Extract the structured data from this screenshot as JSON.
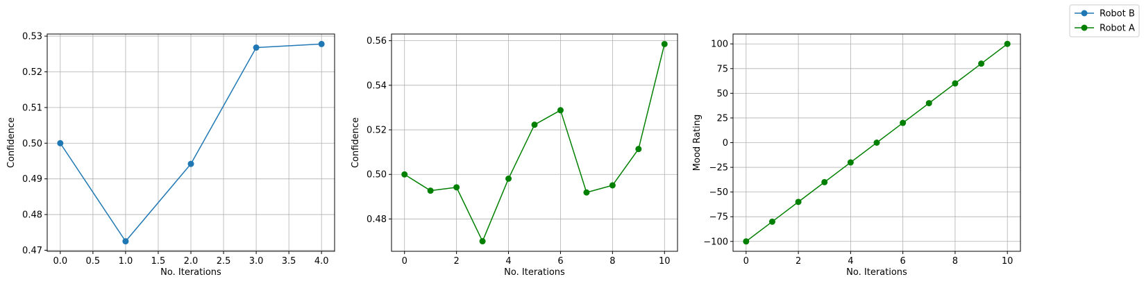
{
  "legend": {
    "placement": "top-right",
    "entries": [
      {
        "label": "Robot B",
        "color": "#1f77b4",
        "marker": "circle"
      },
      {
        "label": "Robot A",
        "color": "#008000",
        "marker": "circle"
      }
    ]
  },
  "chart_data": [
    {
      "type": "line",
      "color": "#1f77b4",
      "xlabel": "No. Iterations",
      "ylabel": "Confidence",
      "xlim": [
        -0.2,
        4.2
      ],
      "ylim": [
        0.4697,
        0.5306
      ],
      "grid": true,
      "xticks": [
        0.0,
        0.5,
        1.0,
        1.5,
        2.0,
        2.5,
        3.0,
        3.5,
        4.0
      ],
      "xtick_labels": [
        "0.0",
        "0.5",
        "1.0",
        "1.5",
        "2.0",
        "2.5",
        "3.0",
        "3.5",
        "4.0"
      ],
      "yticks": [
        0.47,
        0.48,
        0.49,
        0.5,
        0.51,
        0.52,
        0.53
      ],
      "ytick_labels": [
        "0.47",
        "0.48",
        "0.49",
        "0.50",
        "0.51",
        "0.52",
        "0.53"
      ],
      "x": [
        0,
        1,
        2,
        3,
        4
      ],
      "y": [
        0.5,
        0.4725,
        0.4942,
        0.5268,
        0.5278
      ]
    },
    {
      "type": "line",
      "color": "#008000",
      "xlabel": "No. Iterations",
      "ylabel": "Confidence",
      "xlim": [
        -0.5,
        10.5
      ],
      "ylim": [
        0.4655,
        0.563
      ],
      "grid": true,
      "xticks": [
        0,
        2,
        4,
        6,
        8,
        10
      ],
      "xtick_labels": [
        "0",
        "2",
        "4",
        "6",
        "8",
        "10"
      ],
      "yticks": [
        0.48,
        0.5,
        0.52,
        0.54,
        0.56
      ],
      "ytick_labels": [
        "0.48",
        "0.50",
        "0.52",
        "0.54",
        "0.56"
      ],
      "x": [
        0,
        1,
        2,
        3,
        4,
        5,
        6,
        7,
        8,
        9,
        10
      ],
      "y": [
        0.5,
        0.4927,
        0.4942,
        0.47,
        0.4981,
        0.5223,
        0.5288,
        0.4919,
        0.4951,
        0.5114,
        0.5585
      ]
    },
    {
      "type": "line",
      "color": "#008000",
      "xlabel": "No. Iterations",
      "ylabel": "Mood Rating",
      "xlim": [
        -0.5,
        10.5
      ],
      "ylim": [
        -110,
        110
      ],
      "grid": true,
      "xticks": [
        0,
        2,
        4,
        6,
        8,
        10
      ],
      "xtick_labels": [
        "0",
        "2",
        "4",
        "6",
        "8",
        "10"
      ],
      "yticks": [
        -100,
        -75,
        -50,
        -25,
        0,
        25,
        50,
        75,
        100
      ],
      "ytick_labels": [
        "−100",
        "−75",
        "−50",
        "−25",
        "0",
        "25",
        "50",
        "75",
        "100"
      ],
      "x": [
        0,
        1,
        2,
        3,
        4,
        5,
        6,
        7,
        8,
        9,
        10
      ],
      "y": [
        -100,
        -80,
        -60,
        -40,
        -20,
        0,
        20,
        40,
        60,
        80,
        100
      ]
    }
  ]
}
